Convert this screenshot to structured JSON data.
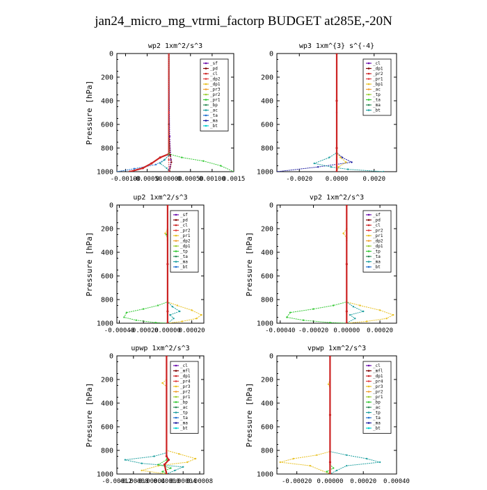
{
  "figure": {
    "title": "jan24_micro_mg_vtrmi_factorp  BUDGET at285E,-20N"
  },
  "chart_data": [
    {
      "type": "line",
      "title": "wp2   1xm^2/s^3",
      "ylabel": "Pressure [hPa]",
      "ylim": [
        1000,
        0
      ],
      "yticks": [
        0,
        200,
        400,
        600,
        800,
        1000
      ],
      "xlim": [
        -0.0012,
        0.0015
      ],
      "xtick_labels": [
        "-0.00100",
        "-0.00050",
        "0.00000",
        "0.00050",
        "0.00100",
        "0.0015"
      ],
      "xtick_values": [
        -0.001,
        -0.0005,
        0,
        0.0005,
        0.001,
        0.0015
      ],
      "legend": [
        "_sf",
        "_pd",
        "_cl",
        "_dp2",
        "_dp1",
        "_pr3",
        "_pr2",
        "_pr1",
        "_bp",
        "_ac",
        "_ta",
        "_ma",
        "_bt"
      ],
      "series": [
        {
          "color": "#1f6fcf",
          "x": [
            0,
            0,
            -0.0001,
            -0.0003,
            -0.0008,
            -0.0012
          ],
          "y": [
            0,
            860,
            900,
            940,
            975,
            1000
          ]
        },
        {
          "color": "#cc2222",
          "x": [
            0,
            0,
            -0.0002,
            -0.0004,
            -0.0006,
            -0.0009
          ],
          "y": [
            0,
            850,
            880,
            930,
            970,
            1000
          ]
        },
        {
          "color": "#6a0dad",
          "x": [
            0,
            2e-05,
            5e-05,
            3e-05,
            0
          ],
          "y": [
            0,
            700,
            900,
            960,
            1000
          ]
        },
        {
          "color": "#32c832",
          "x": [
            0,
            0,
            0.0003,
            0.0008,
            0.0012,
            0.0015
          ],
          "y": [
            0,
            850,
            880,
            910,
            950,
            1000
          ]
        },
        {
          "color": "#7f0000",
          "x": [
            0,
            0,
            3e-05,
            6e-05,
            2e-05
          ],
          "y": [
            0,
            600,
            860,
            920,
            1000
          ]
        },
        {
          "color": "#1fa0a0",
          "x": [
            0,
            0,
            -0.0001,
            -0.0002,
            -5e-05,
            0
          ],
          "y": [
            0,
            860,
            900,
            930,
            970,
            1000
          ]
        },
        {
          "color": "#e03c3c",
          "x": [
            0,
            0,
            0.0,
            0.0
          ],
          "y": [
            0,
            500,
            900,
            1000
          ]
        }
      ]
    },
    {
      "type": "line",
      "title": "wp3   1xm^{3} s^{-4}",
      "ylabel": "",
      "ylim": [
        1000,
        0
      ],
      "yticks": [
        0,
        200,
        400,
        600,
        800,
        1000
      ],
      "xlim": [
        -0.0032,
        0.0032
      ],
      "xtick_labels": [
        "-0.0020",
        "0.0000",
        "0.0020"
      ],
      "xtick_values": [
        -0.002,
        0,
        0.002
      ],
      "legend": [
        "_cl",
        "_dp1",
        "_pr2",
        "_pr1",
        "_bp1",
        "_ac",
        "_tp",
        "_ta",
        "_ma",
        "_bt"
      ],
      "series": [
        {
          "color": "#6a0dad",
          "x": [
            0,
            0,
            0,
            0
          ],
          "y": [
            0,
            500,
            900,
            1000
          ]
        },
        {
          "color": "#1a1aa0",
          "x": [
            0,
            0,
            0.0003,
            0.0008,
            -0.001,
            -0.0032
          ],
          "y": [
            0,
            840,
            880,
            920,
            960,
            1000
          ]
        },
        {
          "color": "#1fa0a0",
          "x": [
            0,
            0,
            -0.0004,
            -0.0012,
            -0.0003,
            0.0006,
            0.0025
          ],
          "y": [
            0,
            840,
            880,
            930,
            960,
            980,
            1000
          ]
        },
        {
          "color": "#e8c020",
          "x": [
            0,
            0,
            0.0002,
            0.0005,
            0.0001,
            0
          ],
          "y": [
            0,
            840,
            880,
            920,
            960,
            1000
          ]
        },
        {
          "color": "#cc2222",
          "x": [
            0,
            0,
            0,
            0
          ],
          "y": [
            0,
            400,
            800,
            1000
          ]
        }
      ]
    },
    {
      "type": "line",
      "title": "up2   1xm^2/s^3",
      "ylabel": "Pressure [hPa]",
      "ylim": [
        1000,
        0
      ],
      "yticks": [
        0,
        200,
        400,
        600,
        800,
        1000
      ],
      "xlim": [
        -0.00042,
        0.0003
      ],
      "xtick_labels": [
        "-0.00040",
        "-0.00020",
        "0.00000",
        "0.00020"
      ],
      "xtick_values": [
        -0.0004,
        -0.0002,
        0,
        0.0002
      ],
      "legend": [
        "_sf",
        "_pd",
        "_cl",
        "_pr2",
        "_pr1",
        "_dp2",
        "_dp1",
        "_tp",
        "_ta",
        "_ma",
        "_bt"
      ],
      "series": [
        {
          "color": "#32c832",
          "x": [
            0,
            0,
            -8e-05,
            -0.0002,
            -0.00034,
            -0.00036,
            -0.00026,
            -0.0001,
            0
          ],
          "y": [
            0,
            820,
            850,
            880,
            910,
            950,
            975,
            995,
            1000
          ]
        },
        {
          "color": "#e8c020",
          "x": [
            0,
            0,
            8e-05,
            0.0002,
            0.00028,
            0.00024,
            0.00012,
            0
          ],
          "y": [
            0,
            820,
            850,
            890,
            930,
            960,
            985,
            1000
          ]
        },
        {
          "color": "#1fa0a0",
          "x": [
            0,
            0,
            4e-05,
            0.0001,
            2e-05,
            5e-05,
            0
          ],
          "y": [
            0,
            820,
            860,
            900,
            930,
            960,
            1000
          ]
        },
        {
          "color": "#e8c020",
          "x": [
            0,
            -2e-05,
            0,
            0
          ],
          "y": [
            200,
            240,
            280,
            300
          ]
        },
        {
          "color": "#32c832",
          "x": [
            0,
            -1e-05,
            0
          ],
          "y": [
            210,
            250,
            290
          ]
        },
        {
          "color": "#cc2222",
          "x": [
            0,
            0,
            0,
            0
          ],
          "y": [
            0,
            500,
            900,
            1000
          ]
        }
      ]
    },
    {
      "type": "line",
      "title": "vp2   1xm^2/s^3",
      "ylabel": "Pressure [hPa]",
      "ylim": [
        1000,
        0
      ],
      "yticks": [
        0,
        200,
        400,
        600,
        800,
        1000
      ],
      "xlim": [
        -0.00042,
        0.0003
      ],
      "xtick_labels": [
        "-0.00040",
        "-0.00020",
        "0.00000",
        "0.00020"
      ],
      "xtick_values": [
        -0.0004,
        -0.0002,
        0,
        0.0002
      ],
      "legend": [
        "_sf",
        "_pd",
        "_cl",
        "_pr2",
        "_pr1",
        "_dp2",
        "_dp1",
        "_tp",
        "_ta",
        "_ma",
        "_bt"
      ],
      "series": [
        {
          "color": "#32c832",
          "x": [
            0,
            0,
            -8e-05,
            -0.0002,
            -0.00034,
            -0.00036,
            -0.00026,
            -0.0001,
            0
          ],
          "y": [
            0,
            820,
            850,
            880,
            910,
            950,
            975,
            995,
            1000
          ]
        },
        {
          "color": "#e8c020",
          "x": [
            0,
            0,
            8e-05,
            0.0002,
            0.00028,
            0.00024,
            0.00012,
            0
          ],
          "y": [
            0,
            820,
            850,
            890,
            930,
            960,
            985,
            1000
          ]
        },
        {
          "color": "#1fa0a0",
          "x": [
            0,
            0,
            4e-05,
            0.0001,
            2e-05,
            5e-05,
            0
          ],
          "y": [
            0,
            820,
            860,
            900,
            930,
            960,
            1000
          ]
        },
        {
          "color": "#e8c020",
          "x": [
            0,
            -2e-05,
            0,
            0
          ],
          "y": [
            200,
            240,
            280,
            300
          ]
        },
        {
          "color": "#cc2222",
          "x": [
            0,
            0,
            0,
            0
          ],
          "y": [
            0,
            500,
            900,
            1000
          ]
        }
      ]
    },
    {
      "type": "line",
      "title": "upwp   1xm^2/s^3",
      "ylabel": "Pressure [hPa]",
      "ylim": [
        1000,
        0
      ],
      "yticks": [
        0,
        200,
        400,
        600,
        800,
        1000
      ],
      "xlim": [
        -0.00012,
        9e-05
      ],
      "xtick_labels": [
        "-0.00012",
        "-0.00008",
        "-0.00004",
        "0.00000",
        "0.00004",
        "0.00008"
      ],
      "xtick_values": [
        -0.00012,
        -8e-05,
        -4e-05,
        0,
        4e-05,
        8e-05
      ],
      "legend": [
        "_cl",
        "_mfl",
        "_dp1",
        "_pr4",
        "_pr3",
        "_pr2",
        "_pr1",
        "_bp",
        "_ac",
        "_tp",
        "_ta",
        "_ma",
        "_bt"
      ],
      "series": [
        {
          "color": "#e8c020",
          "x": [
            0,
            0,
            3e-05,
            7e-05,
            5e-05,
            -2e-05,
            -6e-05,
            0
          ],
          "y": [
            0,
            800,
            830,
            870,
            900,
            930,
            970,
            1000
          ]
        },
        {
          "color": "#1fa0a0",
          "x": [
            0,
            0,
            -3e-05,
            -0.0001,
            -6e-05,
            4e-05,
            2e-05,
            0
          ],
          "y": [
            0,
            820,
            850,
            880,
            910,
            940,
            970,
            1000
          ]
        },
        {
          "color": "#32c832",
          "x": [
            0,
            0,
            -2e-05,
            1e-05,
            -1e-05,
            0
          ],
          "y": [
            0,
            880,
            920,
            950,
            980,
            1000
          ]
        },
        {
          "color": "#e8c020",
          "x": [
            0,
            -1e-05,
            0,
            0
          ],
          "y": [
            200,
            230,
            260,
            280
          ]
        },
        {
          "color": "#cc2222",
          "x": [
            0,
            0,
            5e-06,
            -5e-06,
            0
          ],
          "y": [
            0,
            850,
            880,
            920,
            1000
          ]
        }
      ]
    },
    {
      "type": "line",
      "title": "vpwp   1xm^2/s^3",
      "ylabel": "Pressure [hPa]",
      "ylim": [
        1000,
        0
      ],
      "yticks": [
        0,
        200,
        400,
        600,
        800,
        1000
      ],
      "xlim": [
        -0.00032,
        0.0004
      ],
      "xtick_labels": [
        "-0.00020",
        "0.00000",
        "0.00020",
        "0.00040"
      ],
      "xtick_values": [
        -0.0002,
        0,
        0.0002,
        0.0004
      ],
      "legend": [
        "_cl",
        "_mfl",
        "_dp1",
        "_pr4",
        "_pr3",
        "_pr2",
        "_pr1",
        "_bp",
        "_ac",
        "_tp",
        "_ta",
        "_ma",
        "_bt"
      ],
      "series": [
        {
          "color": "#e8c020",
          "x": [
            0,
            0,
            -8e-05,
            -0.00022,
            -0.0003,
            -0.00012,
            0
          ],
          "y": [
            0,
            810,
            840,
            870,
            900,
            930,
            1000
          ]
        },
        {
          "color": "#1fa0a0",
          "x": [
            0,
            0,
            0.0001,
            0.00022,
            0.0003,
            0.0001,
            4e-05,
            0
          ],
          "y": [
            0,
            810,
            840,
            870,
            900,
            930,
            970,
            1000
          ]
        },
        {
          "color": "#32c832",
          "x": [
            0,
            0,
            2e-05,
            -2e-05,
            0
          ],
          "y": [
            0,
            920,
            950,
            980,
            1000
          ]
        },
        {
          "color": "#e8c020",
          "x": [
            0,
            -1e-05,
            0
          ],
          "y": [
            200,
            240,
            270
          ]
        },
        {
          "color": "#cc2222",
          "x": [
            0,
            0,
            0,
            0
          ],
          "y": [
            0,
            500,
            900,
            1000
          ]
        }
      ]
    }
  ]
}
